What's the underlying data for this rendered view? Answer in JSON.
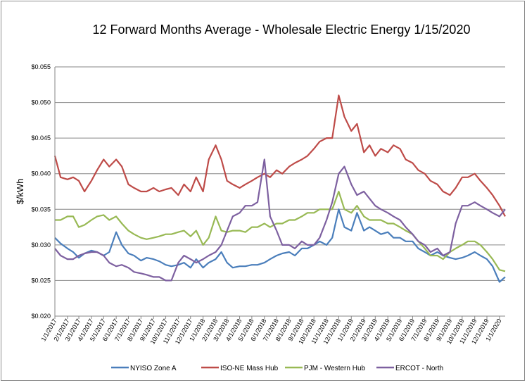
{
  "chart_data": {
    "type": "line",
    "title": "12 Forward Months Average - Wholesale Electric Energy 1/15/2020",
    "xlabel": "",
    "ylabel": "$/kWh",
    "ylim": [
      0.02,
      0.055
    ],
    "y_ticks": [
      "$0.020",
      "$0.025",
      "$0.030",
      "$0.035",
      "$0.040",
      "$0.045",
      "$0.050",
      "$0.055"
    ],
    "grid": "horizontal",
    "legend_position": "bottom",
    "x_ticks": [
      "1/1/2017",
      "2/1/2017",
      "3/1/2017",
      "4/1/2017",
      "5/1/2017",
      "6/1/2017",
      "7/1/2017",
      "8/1/2017",
      "9/1/2017",
      "10/1/2017",
      "11/1/2017",
      "12/1/2017",
      "1/1/2018",
      "2/1/2018",
      "3/1/2018",
      "4/1/2018",
      "5/1/2018",
      "6/1/2018",
      "7/1/2018",
      "8/1/2018",
      "9/1/2018",
      "10/1/2018",
      "11/1/2018",
      "12/1/2018",
      "1/1/2019",
      "2/1/2019",
      "3/1/2019",
      "4/1/2019",
      "5/1/2019",
      "6/1/2019",
      "7/1/2019",
      "8/1/2019",
      "9/1/2019",
      "10/1/2019",
      "11/1/2019",
      "12/1/2019",
      "1/1/2020"
    ],
    "x": [
      "2017-01-01",
      "2017-01-15",
      "2017-02-01",
      "2017-02-15",
      "2017-03-01",
      "2017-03-15",
      "2017-04-01",
      "2017-04-15",
      "2017-05-01",
      "2017-05-15",
      "2017-06-01",
      "2017-06-15",
      "2017-07-01",
      "2017-07-15",
      "2017-08-01",
      "2017-08-15",
      "2017-09-01",
      "2017-09-15",
      "2017-10-01",
      "2017-10-15",
      "2017-11-01",
      "2017-11-15",
      "2017-12-01",
      "2017-12-15",
      "2018-01-01",
      "2018-01-15",
      "2018-02-01",
      "2018-02-15",
      "2018-03-01",
      "2018-03-15",
      "2018-04-01",
      "2018-04-15",
      "2018-05-01",
      "2018-05-15",
      "2018-06-01",
      "2018-06-15",
      "2018-07-01",
      "2018-07-15",
      "2018-08-01",
      "2018-08-15",
      "2018-09-01",
      "2018-09-15",
      "2018-10-01",
      "2018-10-15",
      "2018-11-01",
      "2018-11-15",
      "2018-12-01",
      "2018-12-15",
      "2019-01-01",
      "2019-01-15",
      "2019-02-01",
      "2019-02-15",
      "2019-03-01",
      "2019-03-15",
      "2019-04-01",
      "2019-04-15",
      "2019-05-01",
      "2019-05-15",
      "2019-06-01",
      "2019-06-15",
      "2019-07-01",
      "2019-07-15",
      "2019-08-01",
      "2019-08-15",
      "2019-09-01",
      "2019-09-15",
      "2019-10-01",
      "2019-10-15",
      "2019-11-01",
      "2019-11-15",
      "2019-12-01",
      "2019-12-15",
      "2020-01-01",
      "2020-01-15"
    ],
    "series": [
      {
        "name": "NYISO Zone A",
        "color": "#4a7ebb",
        "values": [
          0.031,
          0.0302,
          0.0295,
          0.029,
          0.0282,
          0.0288,
          0.0292,
          0.029,
          0.0285,
          0.029,
          0.0318,
          0.03,
          0.0288,
          0.0285,
          0.0278,
          0.0282,
          0.028,
          0.0277,
          0.0272,
          0.027,
          0.0272,
          0.0275,
          0.0268,
          0.028,
          0.0268,
          0.0275,
          0.028,
          0.029,
          0.0275,
          0.0268,
          0.027,
          0.027,
          0.0272,
          0.0272,
          0.0275,
          0.028,
          0.0285,
          0.0288,
          0.029,
          0.0285,
          0.0295,
          0.0295,
          0.03,
          0.0305,
          0.03,
          0.031,
          0.035,
          0.0325,
          0.032,
          0.0345,
          0.032,
          0.0325,
          0.032,
          0.0315,
          0.0318,
          0.031,
          0.031,
          0.0305,
          0.0305,
          0.0295,
          0.029,
          0.0285,
          0.029,
          0.0285,
          0.0282,
          0.028,
          0.0282,
          0.0285,
          0.029,
          0.0285,
          0.028,
          0.027,
          0.0248,
          0.0255
        ]
      },
      {
        "name": "ISO-NE Mass Hub",
        "color": "#be4b48",
        "values": [
          0.0425,
          0.0395,
          0.0392,
          0.0395,
          0.039,
          0.0375,
          0.039,
          0.0405,
          0.042,
          0.041,
          0.042,
          0.041,
          0.0385,
          0.038,
          0.0375,
          0.0375,
          0.038,
          0.0375,
          0.0378,
          0.038,
          0.037,
          0.0385,
          0.0375,
          0.0395,
          0.0375,
          0.042,
          0.044,
          0.042,
          0.039,
          0.0385,
          0.038,
          0.0385,
          0.039,
          0.0395,
          0.04,
          0.0395,
          0.0405,
          0.04,
          0.041,
          0.0415,
          0.042,
          0.0425,
          0.0435,
          0.0445,
          0.045,
          0.045,
          0.051,
          0.048,
          0.046,
          0.047,
          0.043,
          0.044,
          0.0425,
          0.0435,
          0.043,
          0.044,
          0.0435,
          0.042,
          0.0415,
          0.0405,
          0.04,
          0.039,
          0.0385,
          0.0375,
          0.037,
          0.038,
          0.0395,
          0.0395,
          0.04,
          0.039,
          0.038,
          0.037,
          0.0355,
          0.034
        ]
      },
      {
        "name": "PJM - Western Hub",
        "color": "#98b954",
        "values": [
          0.0335,
          0.0335,
          0.034,
          0.034,
          0.0325,
          0.0328,
          0.0335,
          0.034,
          0.0342,
          0.0335,
          0.034,
          0.033,
          0.032,
          0.0315,
          0.031,
          0.0308,
          0.031,
          0.0312,
          0.0315,
          0.0315,
          0.0318,
          0.032,
          0.0312,
          0.032,
          0.03,
          0.031,
          0.034,
          0.032,
          0.0318,
          0.032,
          0.032,
          0.0318,
          0.0325,
          0.0325,
          0.033,
          0.0325,
          0.033,
          0.033,
          0.0335,
          0.0335,
          0.034,
          0.0345,
          0.0345,
          0.035,
          0.035,
          0.035,
          0.0375,
          0.035,
          0.0345,
          0.0355,
          0.034,
          0.0335,
          0.0335,
          0.0335,
          0.033,
          0.033,
          0.0325,
          0.032,
          0.0315,
          0.0305,
          0.0295,
          0.0285,
          0.0285,
          0.028,
          0.029,
          0.0295,
          0.03,
          0.0305,
          0.0305,
          0.03,
          0.029,
          0.028,
          0.0265,
          0.0263
        ]
      },
      {
        "name": "ERCOT - North",
        "color": "#7d60a0",
        "values": [
          0.0295,
          0.0285,
          0.028,
          0.028,
          0.0285,
          0.0288,
          0.029,
          0.029,
          0.0285,
          0.0275,
          0.027,
          0.0272,
          0.0268,
          0.0262,
          0.026,
          0.0258,
          0.0255,
          0.0255,
          0.025,
          0.025,
          0.0275,
          0.0285,
          0.028,
          0.0275,
          0.028,
          0.0285,
          0.029,
          0.03,
          0.032,
          0.034,
          0.0345,
          0.0355,
          0.0355,
          0.036,
          0.042,
          0.034,
          0.032,
          0.03,
          0.03,
          0.0295,
          0.0305,
          0.03,
          0.03,
          0.031,
          0.0335,
          0.036,
          0.04,
          0.041,
          0.0385,
          0.037,
          0.0375,
          0.0365,
          0.0355,
          0.035,
          0.0345,
          0.034,
          0.0335,
          0.0325,
          0.0315,
          0.0305,
          0.03,
          0.029,
          0.0295,
          0.0285,
          0.029,
          0.033,
          0.0355,
          0.0355,
          0.036,
          0.0355,
          0.035,
          0.0345,
          0.034,
          0.035
        ]
      }
    ]
  }
}
